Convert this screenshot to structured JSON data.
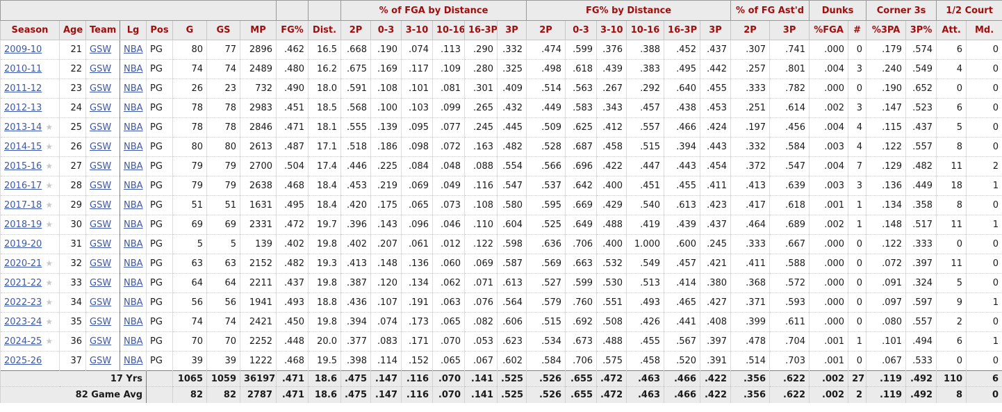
{
  "colors": {
    "header_text": "#a00e0e",
    "link": "#3c58a8",
    "header_bg": "#ebebeb",
    "star": "#c9c9c9"
  },
  "icons": {
    "all_star": "★"
  },
  "table": {
    "col_groups": [
      {
        "label": "",
        "span": 8
      },
      {
        "label": "",
        "span": 1
      },
      {
        "label": "",
        "span": 1
      },
      {
        "label": "% of FGA by Distance",
        "span": 6
      },
      {
        "label": "FG% by Distance",
        "span": 6
      },
      {
        "label": "% of FG Ast'd",
        "span": 2
      },
      {
        "label": "Dunks",
        "span": 2
      },
      {
        "label": "Corner 3s",
        "span": 2
      },
      {
        "label": "1/2 Court",
        "span": 2
      }
    ],
    "columns": [
      "Season",
      "Age",
      "Team",
      "Lg",
      "Pos",
      "G",
      "GS",
      "MP",
      "FG%",
      "Dist.",
      "2P",
      "0-3",
      "3-10",
      "10-16",
      "16-3P",
      "3P",
      "2P",
      "0-3",
      "3-10",
      "10-16",
      "16-3P",
      "3P",
      "2P",
      "3P",
      "%FGA",
      "#",
      "%3PA",
      "3P%",
      "Att.",
      "Md."
    ],
    "rows": [
      {
        "season": "2009-10",
        "all_star": false,
        "values": [
          "21",
          "GSW",
          "NBA",
          "PG",
          "80",
          "77",
          "2896",
          ".462",
          "16.5",
          ".668",
          ".190",
          ".074",
          ".113",
          ".290",
          ".332",
          ".474",
          ".599",
          ".376",
          ".388",
          ".452",
          ".437",
          ".307",
          ".741",
          ".000",
          "0",
          ".179",
          ".574",
          "6",
          "0"
        ]
      },
      {
        "season": "2010-11",
        "all_star": false,
        "values": [
          "22",
          "GSW",
          "NBA",
          "PG",
          "74",
          "74",
          "2489",
          ".480",
          "16.2",
          ".675",
          ".169",
          ".117",
          ".109",
          ".280",
          ".325",
          ".498",
          ".618",
          ".439",
          ".383",
          ".495",
          ".442",
          ".257",
          ".801",
          ".004",
          "3",
          ".240",
          ".549",
          "4",
          "0"
        ]
      },
      {
        "season": "2011-12",
        "all_star": false,
        "values": [
          "23",
          "GSW",
          "NBA",
          "PG",
          "26",
          "23",
          "732",
          ".490",
          "18.0",
          ".591",
          ".108",
          ".101",
          ".081",
          ".301",
          ".409",
          ".514",
          ".563",
          ".267",
          ".292",
          ".640",
          ".455",
          ".333",
          ".782",
          ".000",
          "0",
          ".190",
          ".652",
          "0",
          "0"
        ]
      },
      {
        "season": "2012-13",
        "all_star": false,
        "values": [
          "24",
          "GSW",
          "NBA",
          "PG",
          "78",
          "78",
          "2983",
          ".451",
          "18.5",
          ".568",
          ".100",
          ".103",
          ".099",
          ".265",
          ".432",
          ".449",
          ".583",
          ".343",
          ".457",
          ".438",
          ".453",
          ".251",
          ".614",
          ".002",
          "3",
          ".147",
          ".523",
          "6",
          "0"
        ]
      },
      {
        "season": "2013-14",
        "all_star": true,
        "values": [
          "25",
          "GSW",
          "NBA",
          "PG",
          "78",
          "78",
          "2846",
          ".471",
          "18.1",
          ".555",
          ".139",
          ".095",
          ".077",
          ".245",
          ".445",
          ".509",
          ".625",
          ".412",
          ".557",
          ".466",
          ".424",
          ".197",
          ".456",
          ".004",
          "4",
          ".115",
          ".437",
          "5",
          "0"
        ]
      },
      {
        "season": "2014-15",
        "all_star": true,
        "values": [
          "26",
          "GSW",
          "NBA",
          "PG",
          "80",
          "80",
          "2613",
          ".487",
          "17.1",
          ".518",
          ".186",
          ".098",
          ".072",
          ".163",
          ".482",
          ".528",
          ".687",
          ".458",
          ".515",
          ".394",
          ".443",
          ".332",
          ".584",
          ".003",
          "4",
          ".122",
          ".557",
          "8",
          "0"
        ]
      },
      {
        "season": "2015-16",
        "all_star": true,
        "values": [
          "27",
          "GSW",
          "NBA",
          "PG",
          "79",
          "79",
          "2700",
          ".504",
          "17.4",
          ".446",
          ".225",
          ".084",
          ".048",
          ".088",
          ".554",
          ".566",
          ".696",
          ".422",
          ".447",
          ".443",
          ".454",
          ".372",
          ".547",
          ".004",
          "7",
          ".129",
          ".482",
          "11",
          "2"
        ]
      },
      {
        "season": "2016-17",
        "all_star": true,
        "values": [
          "28",
          "GSW",
          "NBA",
          "PG",
          "79",
          "79",
          "2638",
          ".468",
          "18.4",
          ".453",
          ".219",
          ".069",
          ".049",
          ".116",
          ".547",
          ".537",
          ".642",
          ".400",
          ".451",
          ".455",
          ".411",
          ".413",
          ".639",
          ".003",
          "3",
          ".136",
          ".449",
          "18",
          "1"
        ]
      },
      {
        "season": "2017-18",
        "all_star": true,
        "values": [
          "29",
          "GSW",
          "NBA",
          "PG",
          "51",
          "51",
          "1631",
          ".495",
          "18.4",
          ".420",
          ".175",
          ".065",
          ".073",
          ".108",
          ".580",
          ".595",
          ".669",
          ".429",
          ".540",
          ".613",
          ".423",
          ".417",
          ".618",
          ".001",
          "1",
          ".134",
          ".358",
          "8",
          "0"
        ]
      },
      {
        "season": "2018-19",
        "all_star": true,
        "values": [
          "30",
          "GSW",
          "NBA",
          "PG",
          "69",
          "69",
          "2331",
          ".472",
          "19.7",
          ".396",
          ".143",
          ".096",
          ".046",
          ".110",
          ".604",
          ".525",
          ".649",
          ".488",
          ".419",
          ".439",
          ".437",
          ".464",
          ".689",
          ".002",
          "1",
          ".148",
          ".517",
          "11",
          "1"
        ]
      },
      {
        "season": "2019-20",
        "all_star": false,
        "values": [
          "31",
          "GSW",
          "NBA",
          "PG",
          "5",
          "5",
          "139",
          ".402",
          "19.8",
          ".402",
          ".207",
          ".061",
          ".012",
          ".122",
          ".598",
          ".636",
          ".706",
          ".400",
          "1.000",
          ".600",
          ".245",
          ".333",
          ".667",
          ".000",
          "0",
          ".122",
          ".333",
          "0",
          "0"
        ]
      },
      {
        "season": "2020-21",
        "all_star": true,
        "values": [
          "32",
          "GSW",
          "NBA",
          "PG",
          "63",
          "63",
          "2152",
          ".482",
          "19.3",
          ".413",
          ".148",
          ".136",
          ".060",
          ".069",
          ".587",
          ".569",
          ".663",
          ".532",
          ".549",
          ".457",
          ".421",
          ".411",
          ".588",
          ".000",
          "0",
          ".072",
          ".397",
          "11",
          "0"
        ]
      },
      {
        "season": "2021-22",
        "all_star": true,
        "values": [
          "33",
          "GSW",
          "NBA",
          "PG",
          "64",
          "64",
          "2211",
          ".437",
          "19.8",
          ".387",
          ".120",
          ".134",
          ".062",
          ".071",
          ".613",
          ".527",
          ".599",
          ".530",
          ".513",
          ".414",
          ".380",
          ".368",
          ".572",
          ".000",
          "0",
          ".091",
          ".324",
          "5",
          "0"
        ]
      },
      {
        "season": "2022-23",
        "all_star": true,
        "values": [
          "34",
          "GSW",
          "NBA",
          "PG",
          "56",
          "56",
          "1941",
          ".493",
          "18.8",
          ".436",
          ".107",
          ".191",
          ".063",
          ".076",
          ".564",
          ".579",
          ".760",
          ".551",
          ".493",
          ".465",
          ".427",
          ".371",
          ".593",
          ".000",
          "0",
          ".097",
          ".597",
          "9",
          "1"
        ]
      },
      {
        "season": "2023-24",
        "all_star": true,
        "values": [
          "35",
          "GSW",
          "NBA",
          "PG",
          "74",
          "74",
          "2421",
          ".450",
          "19.8",
          ".394",
          ".074",
          ".173",
          ".065",
          ".082",
          ".606",
          ".515",
          ".692",
          ".508",
          ".426",
          ".441",
          ".408",
          ".399",
          ".611",
          ".000",
          "0",
          ".080",
          ".557",
          "2",
          "0"
        ]
      },
      {
        "season": "2024-25",
        "all_star": true,
        "values": [
          "36",
          "GSW",
          "NBA",
          "PG",
          "70",
          "70",
          "2252",
          ".448",
          "20.0",
          ".377",
          ".083",
          ".171",
          ".070",
          ".053",
          ".623",
          ".534",
          ".673",
          ".488",
          ".455",
          ".567",
          ".397",
          ".478",
          ".704",
          ".001",
          "1",
          ".101",
          ".494",
          "6",
          "1"
        ]
      },
      {
        "season": "2025-26",
        "all_star": false,
        "values": [
          "37",
          "GSW",
          "NBA",
          "PG",
          "39",
          "39",
          "1222",
          ".468",
          "19.5",
          ".398",
          ".114",
          ".152",
          ".065",
          ".067",
          ".602",
          ".584",
          ".706",
          ".575",
          ".458",
          ".520",
          ".391",
          ".514",
          ".703",
          ".001",
          "0",
          ".067",
          ".533",
          "0",
          "0"
        ]
      }
    ],
    "footer": [
      {
        "label": "17 Yrs",
        "values": [
          "1065",
          "1059",
          "36197",
          ".471",
          "18.6",
          ".475",
          ".147",
          ".116",
          ".070",
          ".141",
          ".525",
          ".526",
          ".655",
          ".472",
          ".463",
          ".466",
          ".422",
          ".356",
          ".622",
          ".002",
          "27",
          ".119",
          ".492",
          "110",
          "6"
        ]
      },
      {
        "label": "82 Game Avg",
        "values": [
          "82",
          "82",
          "2787",
          ".471",
          "18.6",
          ".475",
          ".147",
          ".116",
          ".070",
          ".141",
          ".525",
          ".526",
          ".655",
          ".472",
          ".463",
          ".466",
          ".422",
          ".356",
          ".622",
          ".002",
          "2",
          ".119",
          ".492",
          "8",
          "0"
        ]
      }
    ]
  }
}
